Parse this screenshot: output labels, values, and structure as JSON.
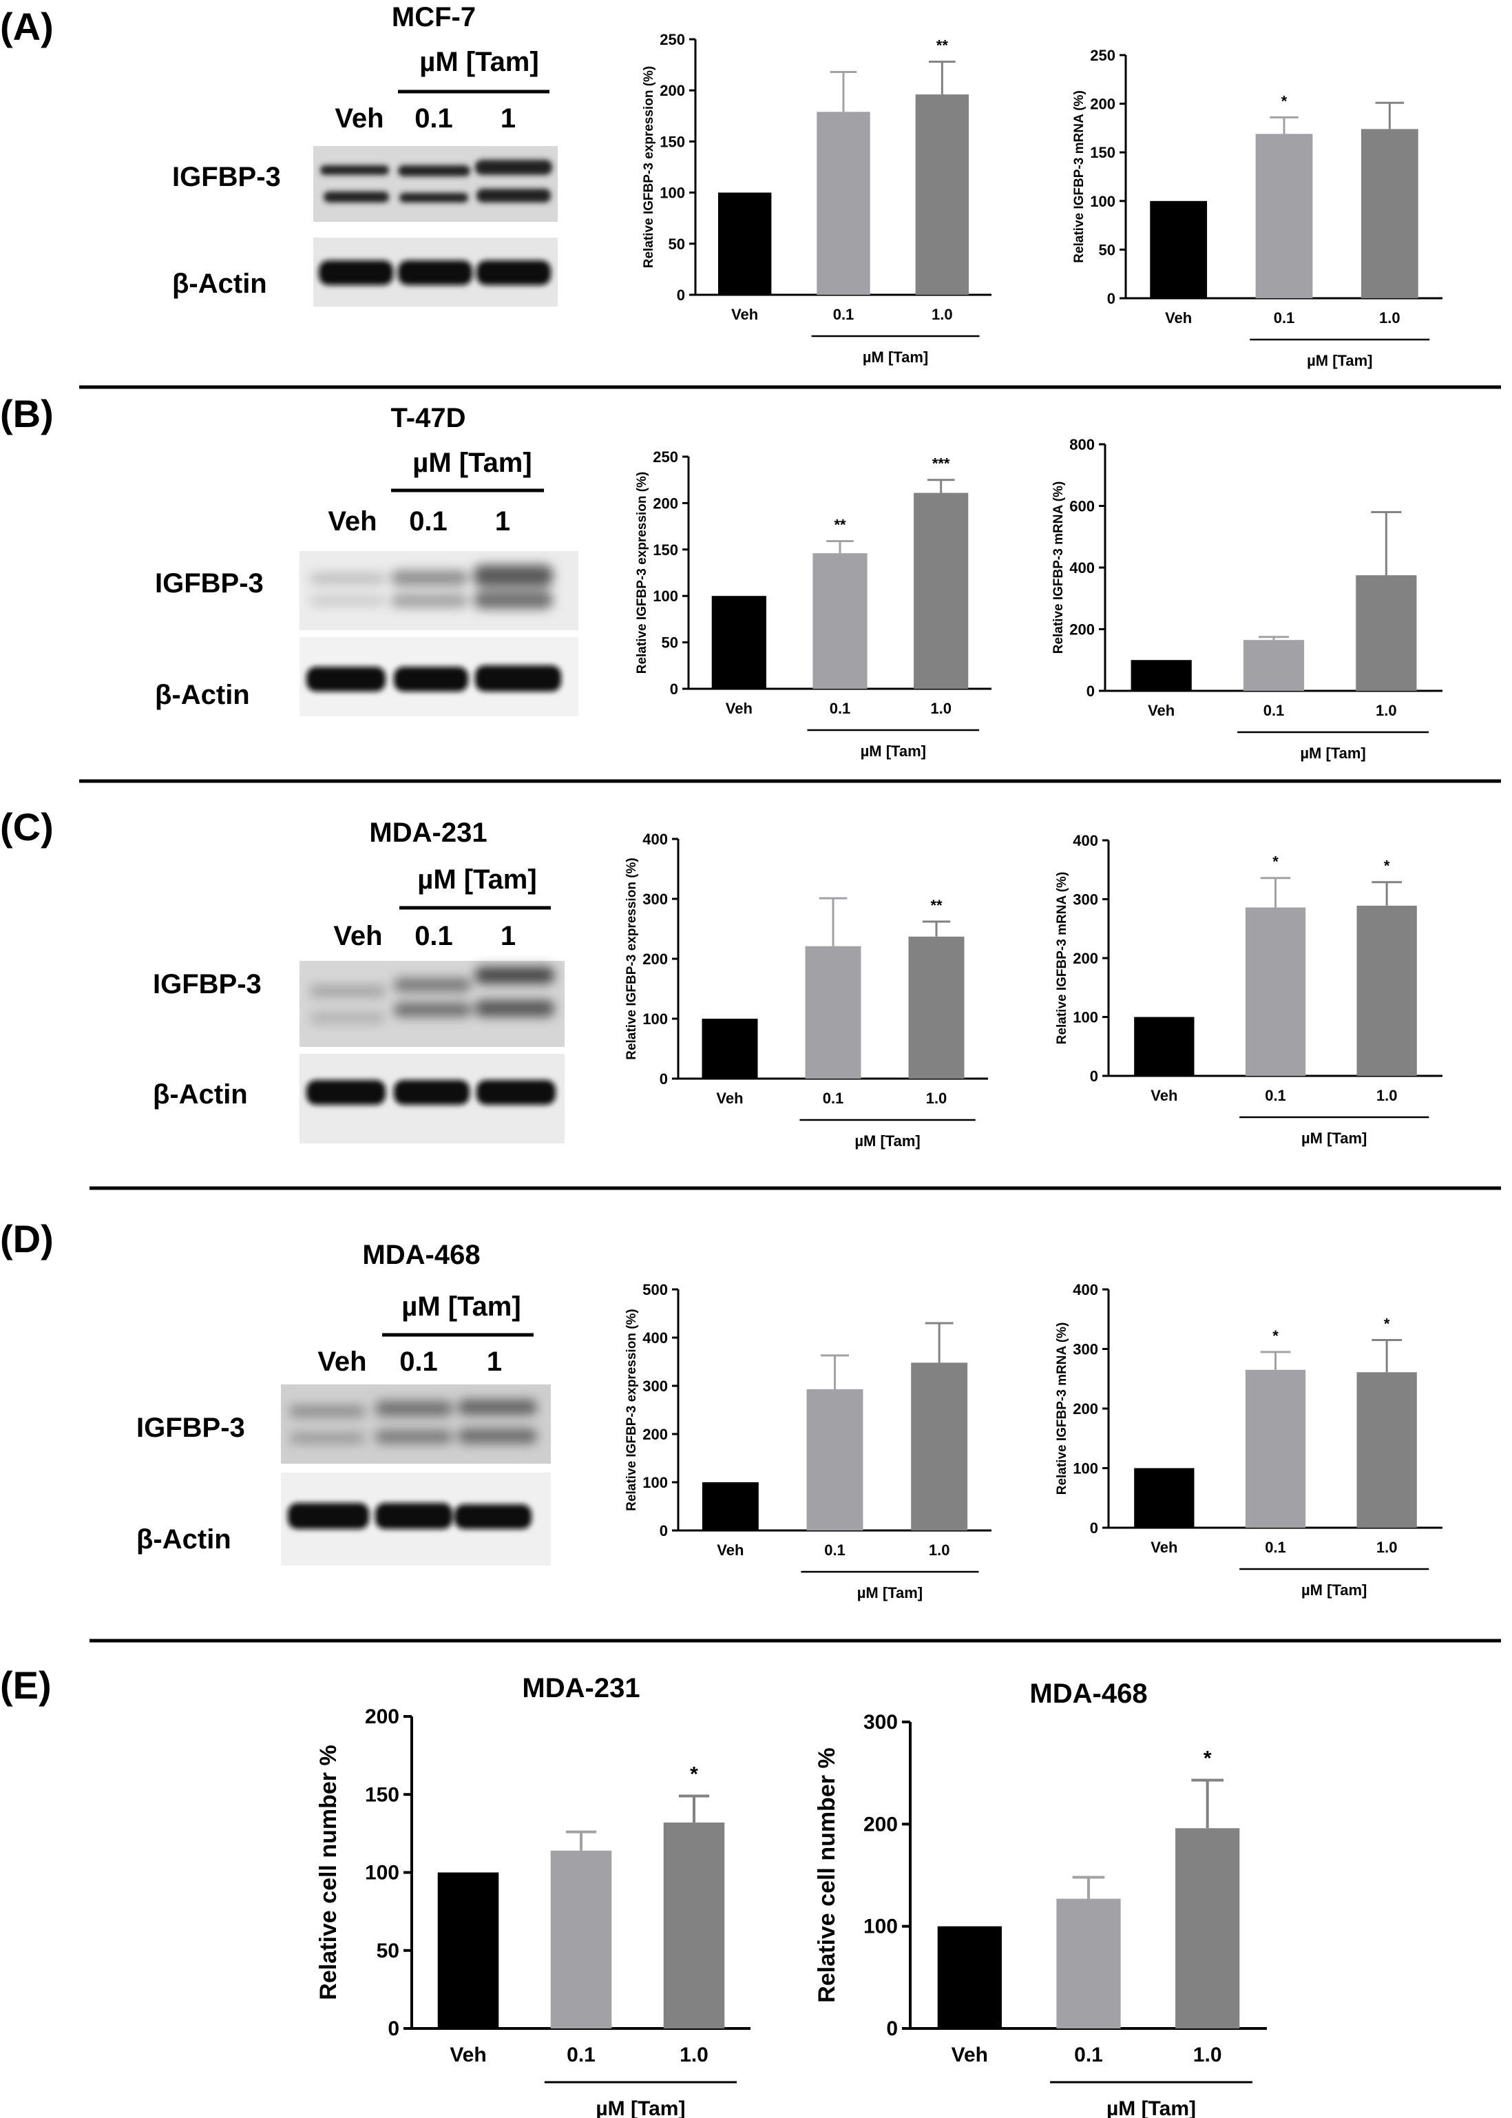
{
  "panels": [
    {
      "label": "(A)",
      "blot": {
        "cell_line": "MCF-7",
        "treatment_header": "µM [Tam]",
        "lanes": [
          "Veh",
          "0.1",
          "1"
        ],
        "rows": [
          "IGFBP-3",
          "β-Actin"
        ]
      }
    },
    {
      "label": "(B)",
      "blot": {
        "cell_line": "T-47D",
        "treatment_header": "µM [Tam]",
        "lanes": [
          "Veh",
          "0.1",
          "1"
        ],
        "rows": [
          "IGFBP-3",
          "β-Actin"
        ]
      }
    },
    {
      "label": "(C)",
      "blot": {
        "cell_line": "MDA-231",
        "treatment_header": "µM [Tam]",
        "lanes": [
          "Veh",
          "0.1",
          "1"
        ],
        "rows": [
          "IGFBP-3",
          "β-Actin"
        ]
      }
    },
    {
      "label": "(D)",
      "blot": {
        "cell_line": "MDA-468",
        "treatment_header": "µM [Tam]",
        "lanes": [
          "Veh",
          "0.1",
          "1"
        ],
        "rows": [
          "IGFBP-3",
          "β-Actin"
        ]
      }
    },
    {
      "label": "(E)"
    }
  ],
  "colors": {
    "veh": "#000000",
    "tam_0_1": "#a2a2a6",
    "tam_1_0": "#828282",
    "axis": "#000000"
  },
  "chart_data": [
    {
      "id": "A-protein",
      "type": "bar",
      "categories": [
        "Veh",
        "0.1",
        "1.0"
      ],
      "group_label": "µM [Tam]",
      "title": "",
      "xlabel": "",
      "ylabel": "Relative IGFBP-3 expression (%)",
      "ylim": [
        0,
        250
      ],
      "yticks": [
        0,
        50,
        100,
        150,
        200,
        250
      ],
      "values": [
        100,
        179,
        196
      ],
      "errors": [
        0,
        39,
        32
      ],
      "significance": [
        "",
        "",
        "**"
      ]
    },
    {
      "id": "A-mrna",
      "type": "bar",
      "categories": [
        "Veh",
        "0.1",
        "1.0"
      ],
      "group_label": "µM [Tam]",
      "title": "",
      "xlabel": "",
      "ylabel": "Relative IGFBP-3 mRNA (%)",
      "ylim": [
        0,
        250
      ],
      "yticks": [
        0,
        50,
        100,
        150,
        200,
        250
      ],
      "values": [
        100,
        169,
        174
      ],
      "errors": [
        0,
        17,
        27
      ],
      "significance": [
        "",
        "*",
        ""
      ]
    },
    {
      "id": "B-protein",
      "type": "bar",
      "categories": [
        "Veh",
        "0.1",
        "1.0"
      ],
      "group_label": "µM [Tam]",
      "title": "",
      "xlabel": "",
      "ylabel": "Relative IGFBP-3 expression (%)",
      "ylim": [
        0,
        250
      ],
      "yticks": [
        0,
        50,
        100,
        150,
        200,
        250
      ],
      "values": [
        100,
        146,
        211
      ],
      "errors": [
        0,
        13,
        14
      ],
      "significance": [
        "",
        "**",
        "***"
      ]
    },
    {
      "id": "B-mrna",
      "type": "bar",
      "categories": [
        "Veh",
        "0.1",
        "1.0"
      ],
      "group_label": "µM [Tam]",
      "title": "",
      "xlabel": "",
      "ylabel": "Relative IGFBP-3 mRNA (%)",
      "ylim": [
        0,
        800
      ],
      "yticks": [
        0,
        200,
        400,
        600,
        800
      ],
      "values": [
        100,
        165,
        375
      ],
      "errors": [
        0,
        10,
        205
      ],
      "significance": [
        "",
        "",
        ""
      ]
    },
    {
      "id": "C-protein",
      "type": "bar",
      "categories": [
        "Veh",
        "0.1",
        "1.0"
      ],
      "group_label": "µM [Tam]",
      "title": "",
      "xlabel": "",
      "ylabel": "Relative IGFBP-3 expression (%)",
      "ylim": [
        0,
        400
      ],
      "yticks": [
        0,
        100,
        200,
        300,
        400
      ],
      "values": [
        100,
        221,
        237
      ],
      "errors": [
        0,
        80,
        25
      ],
      "significance": [
        "",
        "",
        "**"
      ]
    },
    {
      "id": "C-mrna",
      "type": "bar",
      "categories": [
        "Veh",
        "0.1",
        "1.0"
      ],
      "group_label": "µM [Tam]",
      "title": "",
      "xlabel": "",
      "ylabel": "Relative IGFBP-3 mRNA (%)",
      "ylim": [
        0,
        400
      ],
      "yticks": [
        0,
        100,
        200,
        300,
        400
      ],
      "values": [
        100,
        286,
        289
      ],
      "errors": [
        0,
        50,
        40
      ],
      "significance": [
        "",
        "*",
        "*"
      ]
    },
    {
      "id": "D-protein",
      "type": "bar",
      "categories": [
        "Veh",
        "0.1",
        "1.0"
      ],
      "group_label": "µM [Tam]",
      "title": "",
      "xlabel": "",
      "ylabel": "Relative IGFBP-3 expression (%)",
      "ylim": [
        0,
        500
      ],
      "yticks": [
        0,
        100,
        200,
        300,
        400,
        500
      ],
      "values": [
        100,
        293,
        348
      ],
      "errors": [
        0,
        70,
        82
      ],
      "significance": [
        "",
        "",
        ""
      ]
    },
    {
      "id": "D-mrna",
      "type": "bar",
      "categories": [
        "Veh",
        "0.1",
        "1.0"
      ],
      "group_label": "µM [Tam]",
      "title": "",
      "xlabel": "",
      "ylabel": "Relative IGFBP-3 mRNA (%)",
      "ylim": [
        0,
        400
      ],
      "yticks": [
        0,
        100,
        200,
        300,
        400
      ],
      "values": [
        100,
        265,
        261
      ],
      "errors": [
        0,
        30,
        54
      ],
      "significance": [
        "",
        "*",
        "*"
      ]
    },
    {
      "id": "E-231",
      "type": "bar",
      "categories": [
        "Veh",
        "0.1",
        "1.0"
      ],
      "group_label": "µM [Tam]",
      "title": "MDA-231",
      "xlabel": "",
      "ylabel": "Relative cell number %",
      "ylim": [
        0,
        200
      ],
      "yticks": [
        0,
        50,
        100,
        150,
        200
      ],
      "values": [
        100,
        114,
        132
      ],
      "errors": [
        0,
        12,
        17
      ],
      "significance": [
        "",
        "",
        "*"
      ]
    },
    {
      "id": "E-468",
      "type": "bar",
      "categories": [
        "Veh",
        "0.1",
        "1.0"
      ],
      "group_label": "µM [Tam]",
      "title": "MDA-468",
      "xlabel": "",
      "ylabel": "Relative cell number %",
      "ylim": [
        0,
        300
      ],
      "yticks": [
        0,
        100,
        200,
        300
      ],
      "values": [
        100,
        127,
        196
      ],
      "errors": [
        0,
        21,
        47
      ],
      "significance": [
        "",
        "",
        "*"
      ]
    }
  ]
}
